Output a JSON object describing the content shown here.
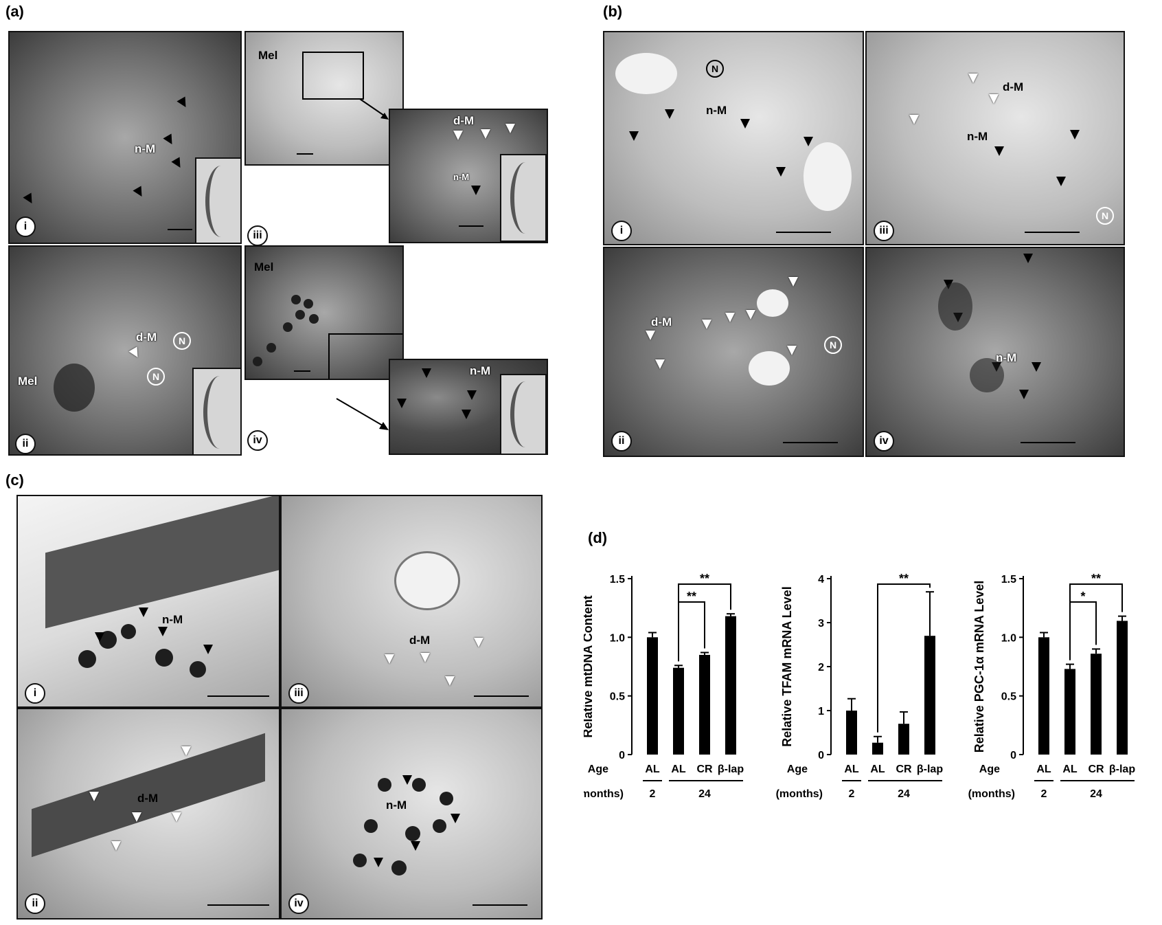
{
  "panels": {
    "a": "(a)",
    "b": "(b)",
    "c": "(c)",
    "d": "(d)"
  },
  "roman": {
    "i": "i",
    "ii": "ii",
    "iii": "iii",
    "iv": "iv"
  },
  "labels": {
    "mel": "Mel",
    "nm": "n-M",
    "dm": "d-M",
    "n": "N"
  },
  "chart_data": [
    {
      "type": "bar",
      "categories": [
        "AL",
        "AL",
        "CR",
        "β-lap"
      ],
      "values": [
        1.0,
        0.74,
        0.85,
        1.18
      ],
      "errors": [
        0.04,
        0.02,
        0.02,
        0.02
      ],
      "ylabel": "Relative mtDNA Content",
      "ylim": [
        0,
        1.5
      ],
      "yticks": [
        "0",
        "0.5",
        "1.0",
        "1.5"
      ],
      "significance": [
        {
          "from": 1,
          "to": 2,
          "label": "**"
        },
        {
          "from": 1,
          "to": 3,
          "label": "**"
        }
      ]
    },
    {
      "type": "bar",
      "categories": [
        "AL",
        "AL",
        "CR",
        "β-lap"
      ],
      "values": [
        1.0,
        0.27,
        0.7,
        2.7
      ],
      "errors": [
        0.27,
        0.14,
        0.27,
        1.0
      ],
      "ylabel": "Relative TFAM mRNA Level",
      "ylim": [
        0,
        4
      ],
      "yticks": [
        "0",
        "1",
        "2",
        "3",
        "4"
      ],
      "significance": [
        {
          "from": 1,
          "to": 3,
          "label": "**"
        }
      ]
    },
    {
      "type": "bar",
      "categories": [
        "AL",
        "AL",
        "CR",
        "β-lap"
      ],
      "values": [
        1.0,
        0.73,
        0.86,
        1.14
      ],
      "errors": [
        0.04,
        0.04,
        0.04,
        0.04
      ],
      "ylabel": "Relative PGC-1α mRNA Level",
      "ylim": [
        0,
        1.5
      ],
      "yticks": [
        "0",
        "0.5",
        "1.0",
        "1.5"
      ],
      "significance": [
        {
          "from": 1,
          "to": 2,
          "label": "*"
        },
        {
          "from": 1,
          "to": 3,
          "label": "**"
        }
      ]
    }
  ],
  "axis_rows": {
    "age_label": "Age",
    "months_label": "(months)",
    "young": "2",
    "old": "24"
  }
}
